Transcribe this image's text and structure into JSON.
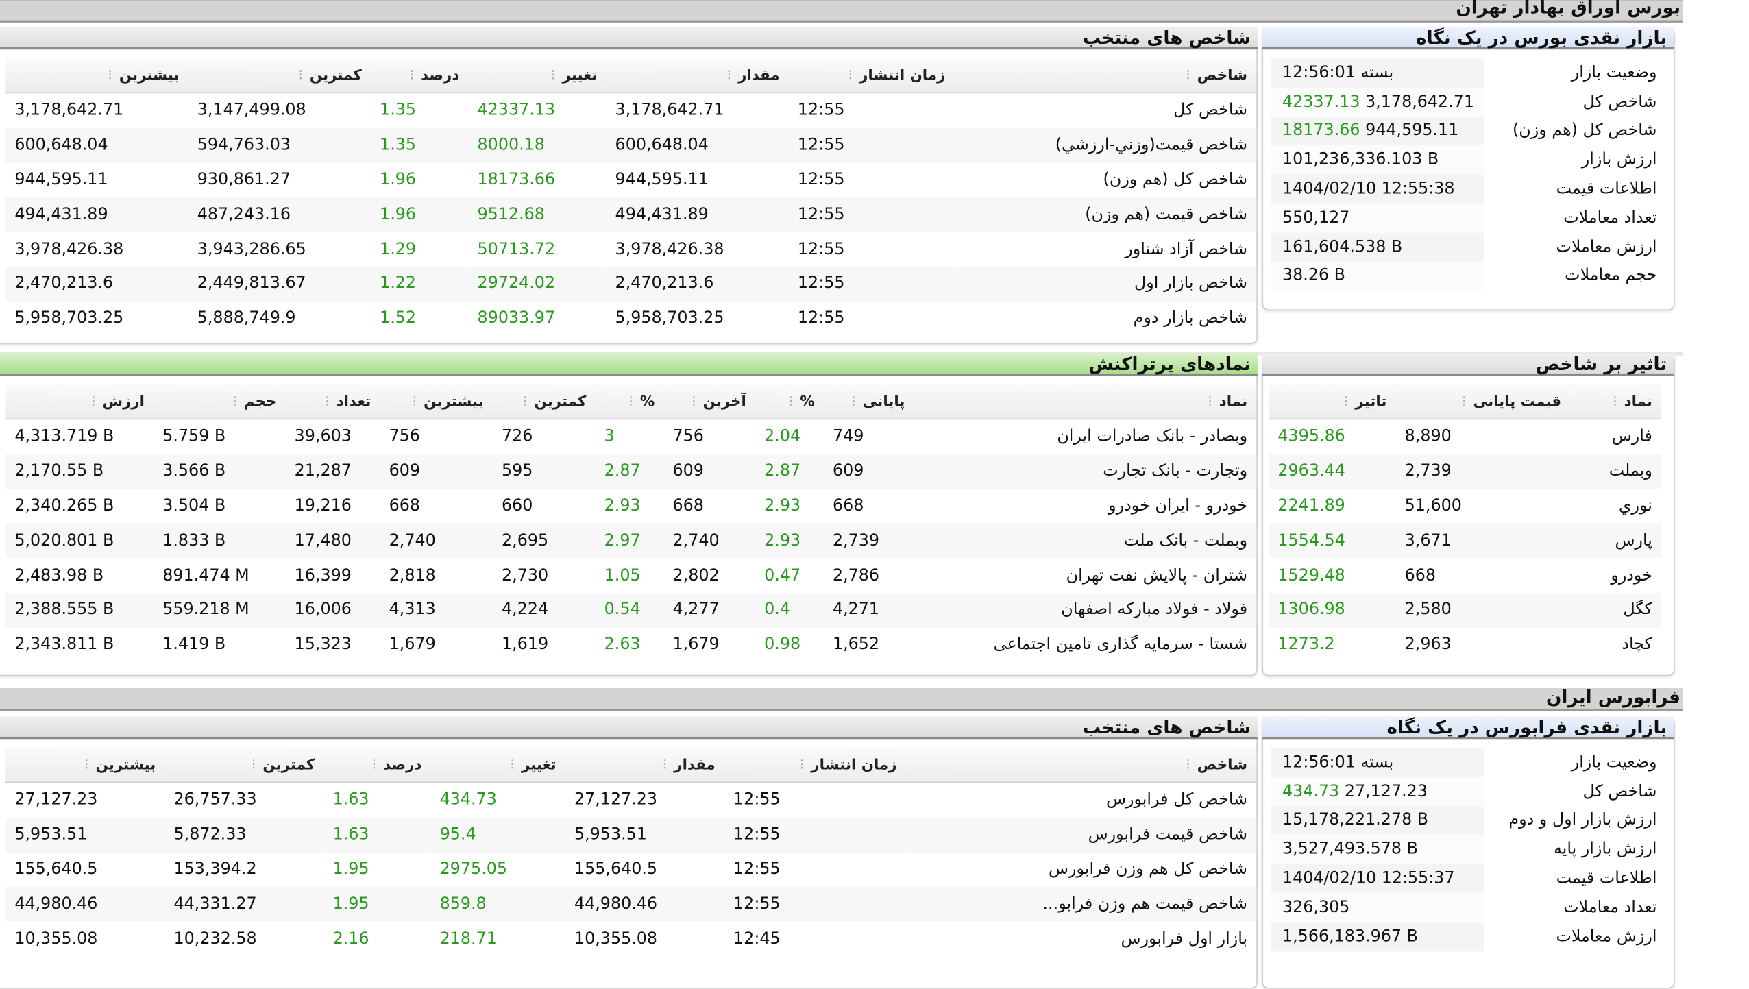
{
  "bourse": {
    "section_title": "بورس اوراق بهادار تهران",
    "summary": {
      "title": "بازار نقدی بورس در یک نگاه",
      "rows": [
        {
          "label": "وضعیت بازار",
          "value": "بسته 12:56:01"
        },
        {
          "label": "شاخص کل",
          "value": "3,178,642.71",
          "change": "42337.13"
        },
        {
          "label": "شاخص کل (هم وزن)",
          "value": "944,595.11",
          "change": "18173.66"
        },
        {
          "label": "ارزش بازار",
          "value": "101,236,336.103 B"
        },
        {
          "label": "اطلاعات قیمت",
          "value": "1404/02/10 12:55:38"
        },
        {
          "label": "تعداد معاملات",
          "value": "550,127"
        },
        {
          "label": "ارزش معاملات",
          "value": "161,604.538 B"
        },
        {
          "label": "حجم معاملات",
          "value": "38.26 B"
        }
      ]
    },
    "indices": {
      "title": "شاخص های منتخب",
      "columns": [
        "شاخص",
        "زمان انتشار",
        "مقدار",
        "تغییر",
        "درصد",
        "کمترین",
        "بیشترین"
      ],
      "rows": [
        [
          "شاخص کل",
          "12:55",
          "3,178,642.71",
          "42337.13",
          "1.35",
          "3,147,499.08",
          "3,178,642.71"
        ],
        [
          "شاخص قیمت(وزني-ارزشي)",
          "12:55",
          "600,648.04",
          "8000.18",
          "1.35",
          "594,763.03",
          "600,648.04"
        ],
        [
          "شاخص کل (هم وزن)",
          "12:55",
          "944,595.11",
          "18173.66",
          "1.96",
          "930,861.27",
          "944,595.11"
        ],
        [
          "شاخص قیمت (هم وزن)",
          "12:55",
          "494,431.89",
          "9512.68",
          "1.96",
          "487,243.16",
          "494,431.89"
        ],
        [
          "شاخص آزاد شناور",
          "12:55",
          "3,978,426.38",
          "50713.72",
          "1.29",
          "3,943,286.65",
          "3,978,426.38"
        ],
        [
          "شاخص بازار اول",
          "12:55",
          "2,470,213.6",
          "29724.02",
          "1.22",
          "2,449,813.67",
          "2,470,213.6"
        ],
        [
          "شاخص بازار دوم",
          "12:55",
          "5,958,703.25",
          "89033.97",
          "1.52",
          "5,888,749.9",
          "5,958,703.25"
        ]
      ]
    },
    "impact": {
      "title": "تاثیر بر شاخص",
      "columns": [
        "نماد",
        "قیمت پایانی",
        "تاثیر"
      ],
      "rows": [
        [
          "فارس",
          "8,890",
          "4395.86"
        ],
        [
          "وبملت",
          "2,739",
          "2963.44"
        ],
        [
          "نوري",
          "51,600",
          "2241.89"
        ],
        [
          "پارس",
          "3,671",
          "1554.54"
        ],
        [
          "خودرو",
          "668",
          "1529.48"
        ],
        [
          "کگل",
          "2,580",
          "1306.98"
        ],
        [
          "کچاد",
          "2,963",
          "1273.2"
        ]
      ]
    },
    "active": {
      "title": "نمادهای پرتراکنش",
      "columns": [
        "نماد",
        "پایانی",
        "%",
        "آخرین",
        "%",
        "کمترین",
        "بیشترین",
        "تعداد",
        "حجم",
        "ارزش"
      ],
      "rows": [
        [
          "وبصادر - بانک صادرات ایران",
          "749",
          "2.04",
          "756",
          "3",
          "726",
          "756",
          "39,603",
          "5.759 B",
          "4,313.719 B"
        ],
        [
          "وتجارت - بانک تجارت",
          "609",
          "2.87",
          "609",
          "2.87",
          "595",
          "609",
          "21,287",
          "3.566 B",
          "2,170.55 B"
        ],
        [
          "خودرو - ایران خودرو",
          "668",
          "2.93",
          "668",
          "2.93",
          "660",
          "668",
          "19,216",
          "3.504 B",
          "2,340.265 B"
        ],
        [
          "وبملت - بانک ملت",
          "2,739",
          "2.93",
          "2,740",
          "2.97",
          "2,695",
          "2,740",
          "17,480",
          "1.833 B",
          "5,020.801 B"
        ],
        [
          "شتران - پالایش نفت تهران",
          "2,786",
          "0.47",
          "2,802",
          "1.05",
          "2,730",
          "2,818",
          "16,399",
          "891.474 M",
          "2,483.98 B"
        ],
        [
          "فولاد - فولاد مبارکه اصفهان",
          "4,271",
          "0.4",
          "4,277",
          "0.54",
          "4,224",
          "4,313",
          "16,006",
          "559.218 M",
          "2,388.555 B"
        ],
        [
          "شستا - سرمایه گذاری تامین اجتماعی",
          "1,652",
          "0.98",
          "1,679",
          "2.63",
          "1,619",
          "1,679",
          "15,323",
          "1.419 B",
          "2,343.811 B"
        ]
      ]
    }
  },
  "farabourse": {
    "section_title": "فرابورس ایران",
    "summary": {
      "title": "بازار نقدی فرابورس در یک نگاه",
      "rows": [
        {
          "label": "وضعیت بازار",
          "value": "بسته 12:56:01"
        },
        {
          "label": "شاخص کل",
          "value": "27,127.23",
          "change": "434.73"
        },
        {
          "label": "ارزش بازار اول و دوم",
          "value": "15,178,221.278 B"
        },
        {
          "label": "ارزش بازار پایه",
          "value": "3,527,493.578 B"
        },
        {
          "label": "اطلاعات قیمت",
          "value": "1404/02/10 12:55:37"
        },
        {
          "label": "تعداد معاملات",
          "value": "326,305"
        },
        {
          "label": "ارزش معاملات",
          "value": "1,566,183.967 B"
        }
      ]
    },
    "indices": {
      "title": "شاخص های منتخب",
      "columns": [
        "شاخص",
        "زمان انتشار",
        "مقدار",
        "تغییر",
        "درصد",
        "کمترین",
        "بیشترین"
      ],
      "rows": [
        [
          "شاخص کل فرابورس",
          "12:55",
          "27,127.23",
          "434.73",
          "1.63",
          "26,757.33",
          "27,127.23"
        ],
        [
          "شاخص قیمت فرابورس",
          "12:55",
          "5,953.51",
          "95.4",
          "1.63",
          "5,872.33",
          "5,953.51"
        ],
        [
          "شاخص کل هم وزن فرابورس",
          "12:55",
          "155,640.5",
          "2975.05",
          "1.95",
          "153,394.2",
          "155,640.5"
        ],
        [
          "شاخص قیمت هم وزن فرابو...",
          "12:55",
          "44,980.46",
          "859.8",
          "1.95",
          "44,331.27",
          "44,980.46"
        ],
        [
          "بازار اول فرابورس",
          "12:45",
          "10,355.08",
          "218.71",
          "2.16",
          "10,232.58",
          "10,355.08"
        ]
      ]
    }
  },
  "colors": {
    "positive": "#2a9a1f",
    "summary_header": "#d6e2f5",
    "active_header": "#a9dd8c"
  }
}
